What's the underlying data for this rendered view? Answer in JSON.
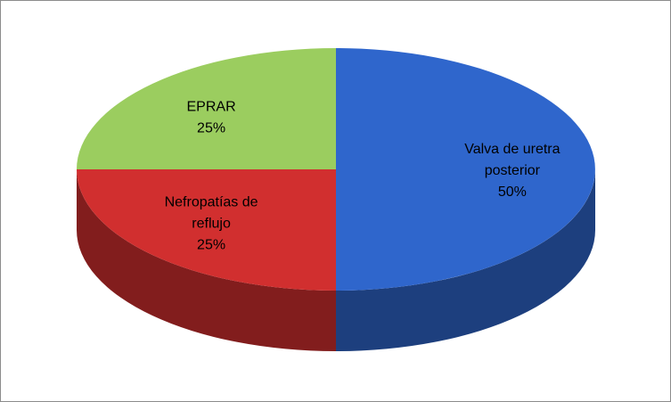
{
  "chart_data": {
    "type": "pie",
    "style": "3d",
    "slices": [
      {
        "label_lines": [
          "Valva de uretra",
          "posterior"
        ],
        "pct_label": "50%",
        "value": 50,
        "color": "#2f66cc"
      },
      {
        "label_lines": [
          "Nefropatías de",
          "reflujo"
        ],
        "pct_label": "25%",
        "value": 25,
        "color": "#d12f2f"
      },
      {
        "label_lines": [
          "EPRAR"
        ],
        "pct_label": "25%",
        "value": 25,
        "color": "#9bcd5f"
      }
    ],
    "legend": "none"
  }
}
